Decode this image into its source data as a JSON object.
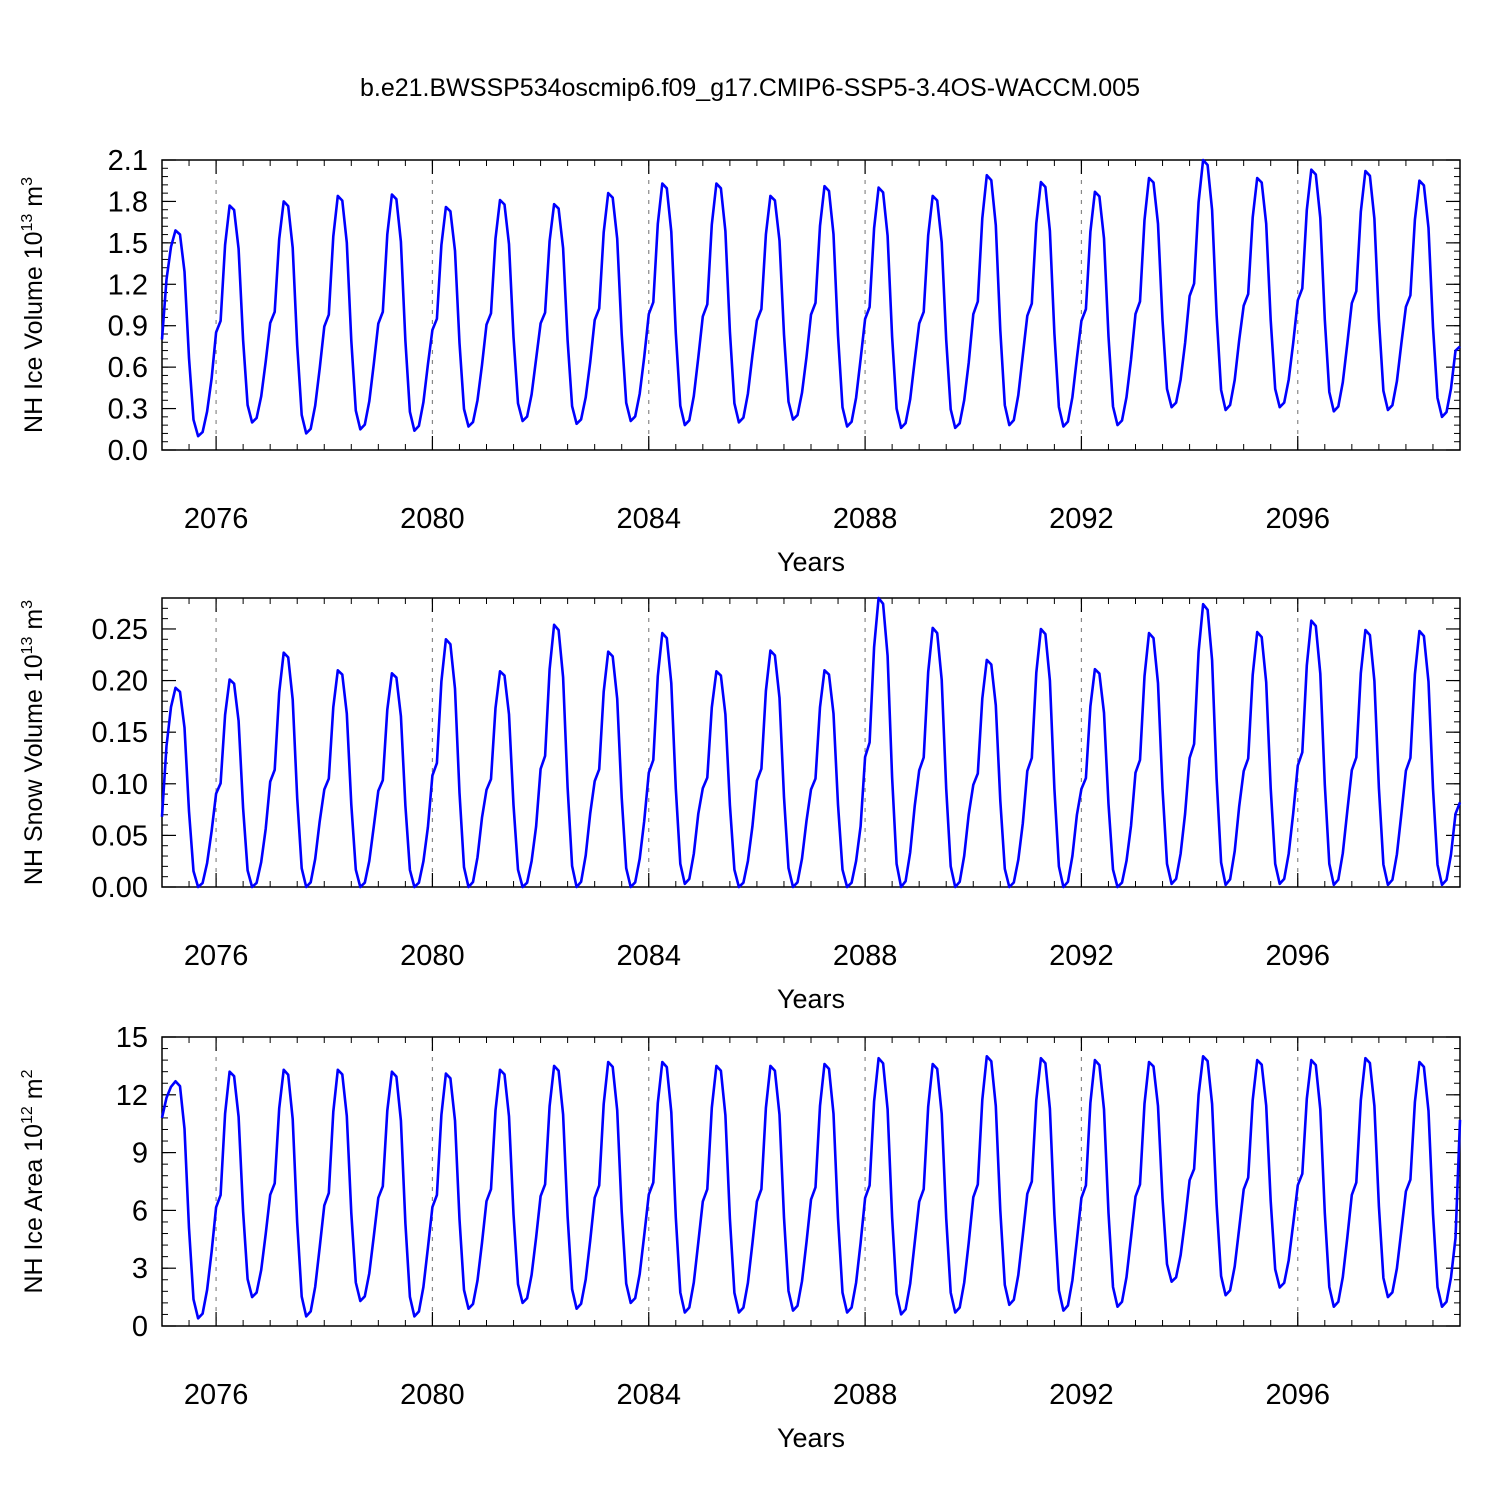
{
  "title": "b.e21.BWSSP534oscmip6.f09_g17.CMIP6-SSP5-3.4OS-WACCM.005",
  "chart_data": [
    {
      "type": "line",
      "ylabel_main": "NH Ice Volume 10",
      "ylabel_exp": "13",
      "ylabel_unit": " m",
      "ylabel_unit_exp": "3",
      "xlabel": "Years",
      "xlim": [
        2075.0,
        2099.0
      ],
      "ylim": [
        0.0,
        2.1
      ],
      "yticks": [
        "0.0",
        "0.3",
        "0.6",
        "0.9",
        "1.2",
        "1.5",
        "1.8",
        "2.1"
      ],
      "xticks": [
        "2076",
        "2080",
        "2084",
        "2088",
        "2092",
        "2096"
      ],
      "line_color": "#0000ff",
      "x": [
        2075.0,
        2075.5
      ],
      "minima": [
        0.1,
        0.2,
        0.12,
        0.15,
        0.14,
        0.17,
        0.21,
        0.19,
        0.21,
        0.18,
        0.2,
        0.22,
        0.17,
        0.16,
        0.16,
        0.18,
        0.17,
        0.18,
        0.31,
        0.29,
        0.31,
        0.28,
        0.29,
        0.24
      ],
      "maxima": [
        1.59,
        1.77,
        1.8,
        1.84,
        1.85,
        1.76,
        1.81,
        1.78,
        1.86,
        1.93,
        1.93,
        1.84,
        1.91,
        1.9,
        1.84,
        1.99,
        1.94,
        1.87,
        1.97,
        2.1,
        1.97,
        2.03,
        2.02,
        1.95
      ],
      "start": 0.8,
      "end": 0.75
    },
    {
      "type": "line",
      "ylabel_main": "NH Snow Volume 10",
      "ylabel_exp": "13",
      "ylabel_unit": " m",
      "ylabel_unit_exp": "3",
      "xlabel": "Years",
      "xlim": [
        2075.0,
        2099.0
      ],
      "ylim": [
        0.0,
        0.28
      ],
      "yticks": [
        "0.00",
        "0.05",
        "0.10",
        "0.15",
        "0.20",
        "0.25"
      ],
      "ytick_values": [
        0.0,
        0.05,
        0.1,
        0.15,
        0.2,
        0.25
      ],
      "xticks": [
        "2076",
        "2080",
        "2084",
        "2088",
        "2092",
        "2096"
      ],
      "line_color": "#0000ff",
      "minima": [
        0.0,
        0.0,
        0.0,
        0.0,
        0.0,
        0.0,
        0.0,
        0.0,
        0.0,
        0.003,
        0.0,
        0.0,
        0.0,
        0.0,
        0.0,
        0.0,
        0.0,
        0.0,
        0.003,
        0.002,
        0.003,
        0.002,
        0.002,
        0.002
      ],
      "maxima": [
        0.193,
        0.201,
        0.227,
        0.21,
        0.207,
        0.24,
        0.209,
        0.254,
        0.228,
        0.246,
        0.209,
        0.229,
        0.21,
        0.28,
        0.251,
        0.22,
        0.25,
        0.211,
        0.246,
        0.274,
        0.247,
        0.258,
        0.249,
        0.248
      ],
      "start": 0.068,
      "end": 0.082
    },
    {
      "type": "line",
      "ylabel_main": "NH Ice Area 10",
      "ylabel_exp": "12",
      "ylabel_unit": " m",
      "ylabel_unit_exp": "2",
      "xlabel": "Years",
      "xlim": [
        2075.0,
        2099.0
      ],
      "ylim": [
        0,
        15
      ],
      "yticks": [
        "0",
        "3",
        "6",
        "9",
        "12",
        "15"
      ],
      "xticks": [
        "2076",
        "2080",
        "2084",
        "2088",
        "2092",
        "2096"
      ],
      "line_color": "#0000ff",
      "minima": [
        0.4,
        1.5,
        0.5,
        1.3,
        0.5,
        0.9,
        1.2,
        0.9,
        1.2,
        0.7,
        0.7,
        0.8,
        0.7,
        0.6,
        0.7,
        1.1,
        0.8,
        1.0,
        2.3,
        1.6,
        2.0,
        1.0,
        1.5,
        1.0
      ],
      "maxima": [
        12.7,
        13.2,
        13.3,
        13.3,
        13.2,
        13.1,
        13.3,
        13.5,
        13.7,
        13.7,
        13.5,
        13.5,
        13.6,
        13.9,
        13.6,
        14.0,
        13.9,
        13.8,
        13.7,
        14.0,
        13.8,
        13.8,
        13.9,
        13.7
      ],
      "start": 10.8,
      "end": 10.7
    }
  ]
}
